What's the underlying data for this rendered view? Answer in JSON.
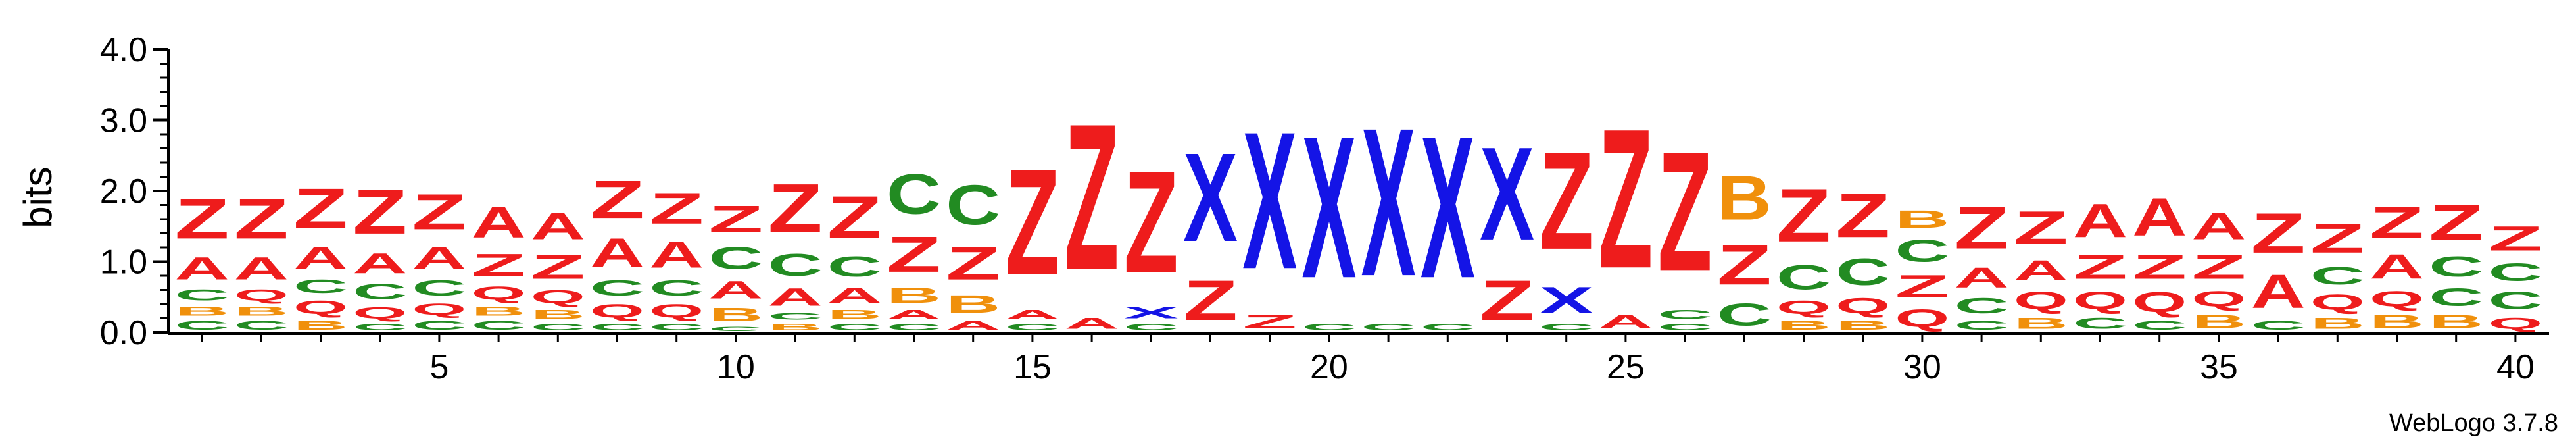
{
  "chart_data": {
    "type": "sequence_logo",
    "title": "",
    "xlabel": "",
    "ylabel": "bits",
    "ylim": [
      0,
      4.0
    ],
    "yticks": [
      "0.0",
      "1.0",
      "2.0",
      "3.0",
      "4.0"
    ],
    "xticks": [
      5,
      10,
      15,
      20,
      25,
      30,
      35,
      40
    ],
    "credit": "WebLogo 3.7.8",
    "colors": {
      "Z": "#ee1c1c",
      "A": "#ee1c1c",
      "C": "#228b22",
      "Q": "#ee1c1c",
      "B": "#f0900c",
      "X": "#1414e6"
    },
    "positions": [
      [
        [
          "C",
          0.2
        ],
        [
          "B",
          0.2
        ],
        [
          "C",
          0.25
        ],
        [
          "A",
          0.5
        ],
        [
          "Z",
          0.9
        ]
      ],
      [
        [
          "C",
          0.2
        ],
        [
          "B",
          0.2
        ],
        [
          "Q",
          0.25
        ],
        [
          "A",
          0.5
        ],
        [
          "Z",
          0.9
        ]
      ],
      [
        [
          "B",
          0.2
        ],
        [
          "Q",
          0.3
        ],
        [
          "C",
          0.3
        ],
        [
          "A",
          0.5
        ],
        [
          "Z",
          0.9
        ]
      ],
      [
        [
          "C",
          0.15
        ],
        [
          "Q",
          0.25
        ],
        [
          "C",
          0.35
        ],
        [
          "A",
          0.45
        ],
        [
          "Z",
          1.0
        ]
      ],
      [
        [
          "C",
          0.2
        ],
        [
          "Q",
          0.25
        ],
        [
          "C",
          0.35
        ],
        [
          "A",
          0.5
        ],
        [
          "Z",
          0.8
        ]
      ],
      [
        [
          "C",
          0.2
        ],
        [
          "B",
          0.2
        ],
        [
          "Q",
          0.3
        ],
        [
          "Z",
          0.5
        ],
        [
          "A",
          0.7
        ]
      ],
      [
        [
          "C",
          0.15
        ],
        [
          "B",
          0.2
        ],
        [
          "Q",
          0.3
        ],
        [
          "Z",
          0.55
        ],
        [
          "A",
          0.6
        ]
      ],
      [
        [
          "C",
          0.15
        ],
        [
          "Q",
          0.3
        ],
        [
          "C",
          0.35
        ],
        [
          "A",
          0.65
        ],
        [
          "Z",
          0.85
        ]
      ],
      [
        [
          "C",
          0.15
        ],
        [
          "Q",
          0.3
        ],
        [
          "C",
          0.35
        ],
        [
          "A",
          0.6
        ],
        [
          "Z",
          0.7
        ]
      ],
      [
        [
          "C",
          0.1
        ],
        [
          "B",
          0.3
        ],
        [
          "A",
          0.4
        ],
        [
          "C",
          0.5
        ],
        [
          "Z",
          0.6
        ]
      ],
      [
        [
          "B",
          0.15
        ],
        [
          "C",
          0.15
        ],
        [
          "A",
          0.4
        ],
        [
          "C",
          0.5
        ],
        [
          "Z",
          1.1
        ]
      ],
      [
        [
          "C",
          0.15
        ],
        [
          "B",
          0.2
        ],
        [
          "A",
          0.35
        ],
        [
          "C",
          0.45
        ],
        [
          "Z",
          0.95
        ]
      ],
      [
        [
          "C",
          0.15
        ],
        [
          "A",
          0.2
        ],
        [
          "B",
          0.35
        ],
        [
          "Z",
          0.8
        ],
        [
          "C",
          0.9
        ]
      ],
      [
        [
          "A",
          0.2
        ],
        [
          "B",
          0.4
        ],
        [
          "Z",
          0.75
        ],
        [
          "C",
          0.9
        ]
      ],
      [
        [
          "C",
          0.15
        ],
        [
          "A",
          0.2
        ],
        [
          "Z",
          2.4
        ]
      ],
      [
        [
          "A",
          0.25
        ],
        [
          "Z",
          3.3
        ]
      ],
      [
        [
          "C",
          0.15
        ],
        [
          "X",
          0.25
        ],
        [
          "Z",
          2.3
        ]
      ],
      [
        [
          "Z",
          0.9
        ],
        [
          "X",
          2.0
        ]
      ],
      [
        [
          "Z",
          0.3
        ],
        [
          "X",
          3.1
        ]
      ],
      [
        [
          "C",
          0.15
        ],
        [
          "X",
          3.2
        ]
      ],
      [
        [
          "C",
          0.15
        ],
        [
          "X",
          3.35
        ]
      ],
      [
        [
          "C",
          0.15
        ],
        [
          "X",
          3.2
        ]
      ],
      [
        [
          "Z",
          0.9
        ],
        [
          "X",
          2.1
        ]
      ],
      [
        [
          "C",
          0.15
        ],
        [
          "X",
          0.6
        ],
        [
          "Z",
          2.2
        ]
      ],
      [
        [
          "A",
          0.3
        ],
        [
          "Z",
          3.15
        ]
      ],
      [
        [
          "C",
          0.15
        ],
        [
          "C",
          0.2
        ],
        [
          "Z",
          2.7
        ]
      ],
      [
        [
          "C",
          0.5
        ],
        [
          "Z",
          0.9
        ],
        [
          "B",
          1.0
        ]
      ],
      [
        [
          "B",
          0.2
        ],
        [
          "Q",
          0.3
        ],
        [
          "C",
          0.55
        ],
        [
          "Z",
          1.2
        ]
      ],
      [
        [
          "B",
          0.2
        ],
        [
          "Q",
          0.35
        ],
        [
          "C",
          0.6
        ],
        [
          "Z",
          1.0
        ]
      ],
      [
        [
          "Q",
          0.4
        ],
        [
          "Z",
          0.5
        ],
        [
          "C",
          0.5
        ],
        [
          "B",
          0.4
        ]
      ],
      [
        [
          "C",
          0.2
        ],
        [
          "C",
          0.35
        ],
        [
          "A",
          0.45
        ],
        [
          "Z",
          0.95
        ]
      ],
      [
        [
          "B",
          0.25
        ],
        [
          "Q",
          0.4
        ],
        [
          "A",
          0.45
        ],
        [
          "Z",
          0.75
        ]
      ],
      [
        [
          "C",
          0.25
        ],
        [
          "Q",
          0.4
        ],
        [
          "Z",
          0.55
        ],
        [
          "A",
          0.75
        ]
      ],
      [
        [
          "C",
          0.2
        ],
        [
          "Q",
          0.45
        ],
        [
          "Z",
          0.55
        ],
        [
          "A",
          0.85
        ]
      ],
      [
        [
          "B",
          0.3
        ],
        [
          "Q",
          0.35
        ],
        [
          "Z",
          0.55
        ],
        [
          "A",
          0.6
        ]
      ],
      [
        [
          "C",
          0.2
        ],
        [
          "A",
          0.75
        ],
        [
          "Z",
          0.9
        ]
      ],
      [
        [
          "B",
          0.25
        ],
        [
          "Q",
          0.35
        ],
        [
          "C",
          0.4
        ],
        [
          "Z",
          0.65
        ]
      ],
      [
        [
          "B",
          0.3
        ],
        [
          "Q",
          0.35
        ],
        [
          "A",
          0.55
        ],
        [
          "Z",
          0.7
        ]
      ],
      [
        [
          "B",
          0.3
        ],
        [
          "C",
          0.4
        ],
        [
          "C",
          0.45
        ],
        [
          "Z",
          0.8
        ]
      ],
      [
        [
          "Q",
          0.25
        ],
        [
          "C",
          0.4
        ],
        [
          "C",
          0.4
        ],
        [
          "Z",
          0.55
        ]
      ]
    ]
  }
}
